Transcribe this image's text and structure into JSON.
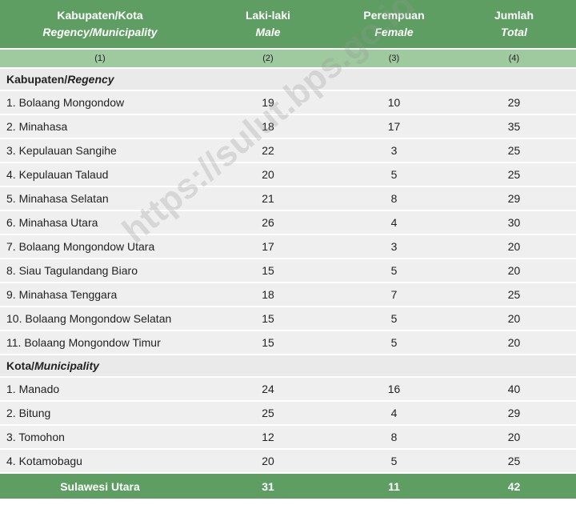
{
  "table": {
    "columns": [
      {
        "label": "Kabupaten/Kota",
        "sublabel": "Regency/Municipality"
      },
      {
        "label": "Laki-laki",
        "sublabel": "Male"
      },
      {
        "label": "Perempuan",
        "sublabel": "Female"
      },
      {
        "label": "Jumlah",
        "sublabel": "Total"
      }
    ],
    "column_numbers": [
      "(1)",
      "(2)",
      "(3)",
      "(4)"
    ],
    "sections": [
      {
        "title": "Kabupaten/",
        "title_italic": "Regency",
        "rows": [
          [
            "1. Bolaang Mongondow",
            19,
            10,
            29
          ],
          [
            "2. Minahasa",
            18,
            17,
            35
          ],
          [
            "3. Kepulauan Sangihe",
            22,
            3,
            25
          ],
          [
            "4. Kepulauan Talaud",
            20,
            5,
            25
          ],
          [
            "5. Minahasa Selatan",
            21,
            8,
            29
          ],
          [
            "6. Minahasa Utara",
            26,
            4,
            30
          ],
          [
            "7. Bolaang Mongondow Utara",
            17,
            3,
            20
          ],
          [
            "8. Siau Tagulandang Biaro",
            15,
            5,
            20
          ],
          [
            "9. Minahasa Tenggara",
            18,
            7,
            25
          ],
          [
            "10. Bolaang Mongondow Selatan",
            15,
            5,
            20
          ],
          [
            "11. Bolaang Mongondow Timur",
            15,
            5,
            20
          ]
        ]
      },
      {
        "title": "Kota/",
        "title_italic": "Municipality",
        "rows": [
          [
            "1. Manado",
            24,
            16,
            40
          ],
          [
            "2. Bitung",
            25,
            4,
            29
          ],
          [
            "3. Tomohon",
            12,
            8,
            20
          ],
          [
            "4. Kotamobagu",
            20,
            5,
            25
          ]
        ]
      }
    ],
    "total": [
      "Sulawesi Utara",
      31,
      11,
      42
    ]
  },
  "watermark": "https://sulut.bps.go.id"
}
